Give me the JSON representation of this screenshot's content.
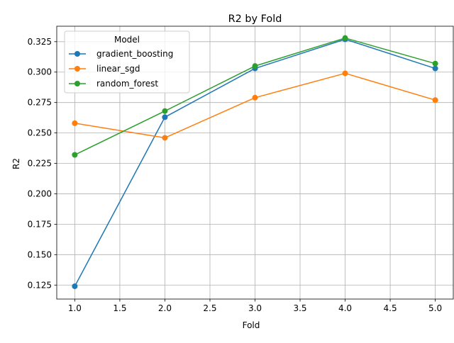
{
  "chart_data": {
    "type": "line",
    "title": "R2 by Fold",
    "xlabel": "Fold",
    "ylabel": "R2",
    "xlim": [
      0.8,
      5.2
    ],
    "ylim": [
      0.1135,
      0.3377
    ],
    "x": [
      1.0,
      2.0,
      3.0,
      4.0,
      5.0
    ],
    "xticks": [
      "1.0",
      "1.5",
      "2.0",
      "2.5",
      "3.0",
      "3.5",
      "4.0",
      "4.5",
      "5.0"
    ],
    "yticks": [
      "0.125",
      "0.150",
      "0.175",
      "0.200",
      "0.225",
      "0.250",
      "0.275",
      "0.300",
      "0.325"
    ],
    "grid": true,
    "legend": {
      "title": "Model",
      "placement": "top-left"
    },
    "series": [
      {
        "name": "gradient_boosting",
        "color": "#1f77b4",
        "values": [
          0.124,
          0.263,
          0.303,
          0.327,
          0.303
        ]
      },
      {
        "name": "linear_sgd",
        "color": "#ff7f0e",
        "values": [
          0.258,
          0.246,
          0.279,
          0.299,
          0.277
        ]
      },
      {
        "name": "random_forest",
        "color": "#2ca02c",
        "values": [
          0.232,
          0.268,
          0.305,
          0.328,
          0.307
        ]
      }
    ]
  }
}
